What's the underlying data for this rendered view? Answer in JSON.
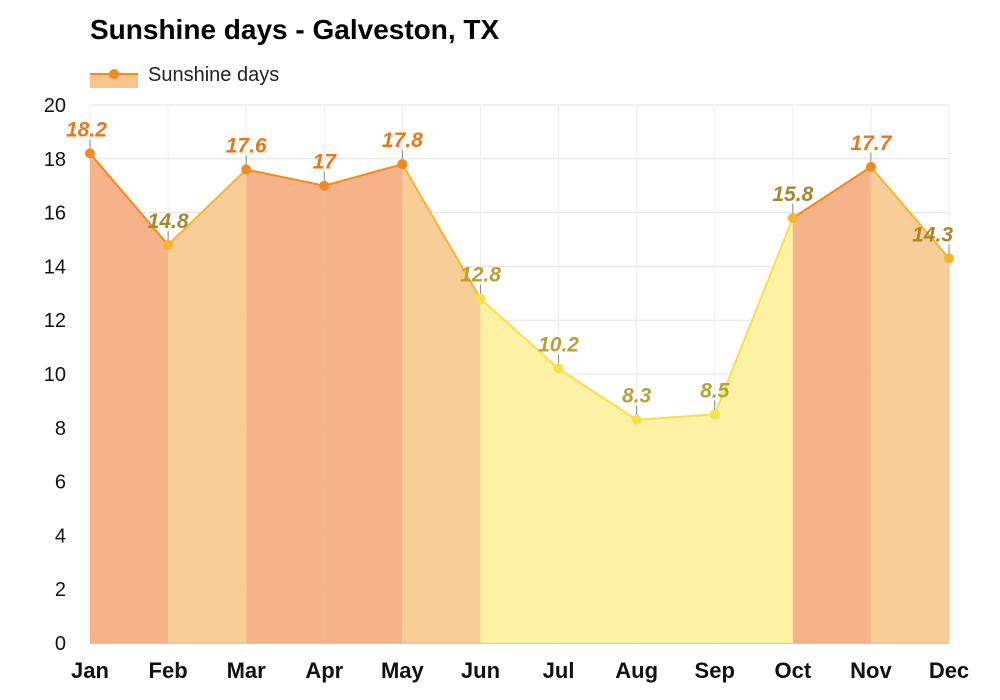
{
  "chart_data": {
    "type": "area",
    "title": "Sunshine days - Galveston, TX",
    "categories": [
      "Jan",
      "Feb",
      "Mar",
      "Apr",
      "May",
      "Jun",
      "Jul",
      "Aug",
      "Sep",
      "Oct",
      "Nov",
      "Dec"
    ],
    "series": [
      {
        "name": "Sunshine days",
        "values": [
          18.2,
          14.8,
          17.6,
          17,
          17.8,
          12.8,
          10.2,
          8.3,
          8.5,
          15.8,
          17.7,
          14.3
        ]
      }
    ],
    "data_labels": [
      "18.2",
      "14.8",
      "17.6",
      "17",
      "17.8",
      "12.8",
      "10.2",
      "8.3",
      "8.5",
      "15.8",
      "17.7",
      "14.3"
    ],
    "ylim": [
      0,
      20
    ],
    "yticks": [
      "0",
      "2",
      "4",
      "6",
      "8",
      "10",
      "12",
      "14",
      "16",
      "18",
      "20"
    ],
    "xlabel": "",
    "ylabel": "",
    "grid": true,
    "legend_position": "top-left",
    "colors": {
      "line_high": "#f28a1e",
      "line_mid": "#f5b52e",
      "line_low": "#f7e04a",
      "fill_high": "#f5ad80",
      "fill_mid": "#f8c98e",
      "fill_low": "#fdf19c",
      "label_high": "#e8771a",
      "label_mid": "#a8862a",
      "label_low": "#b4a436"
    }
  }
}
